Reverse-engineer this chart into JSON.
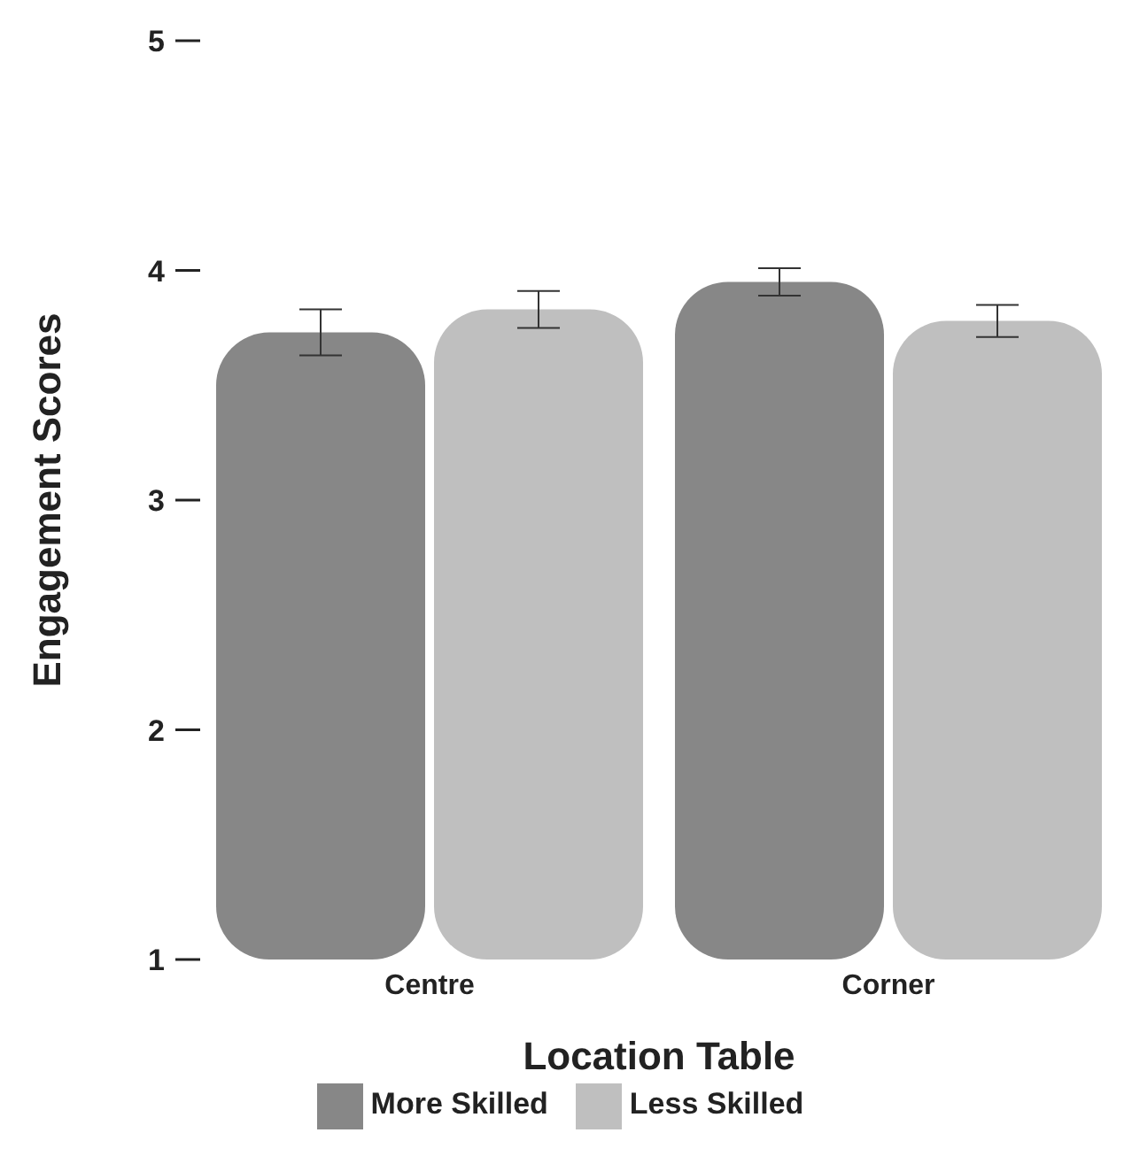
{
  "chart_data": {
    "type": "bar",
    "categories": [
      "Centre",
      "Corner"
    ],
    "xlabel": "Location Table",
    "ylabel": "Engagement Scores",
    "series": [
      {
        "name": "More Skilled",
        "color": "#878787",
        "values": [
          3.73,
          3.95
        ],
        "errors": [
          0.1,
          0.06
        ]
      },
      {
        "name": "Less Skilled",
        "color": "#bfbfbf",
        "values": [
          3.83,
          3.78
        ],
        "errors": [
          0.08,
          0.07
        ]
      }
    ],
    "ylim": [
      1,
      5
    ],
    "yticks": [
      1,
      2,
      3,
      4,
      5
    ],
    "grid": false,
    "legend": "bottom"
  }
}
